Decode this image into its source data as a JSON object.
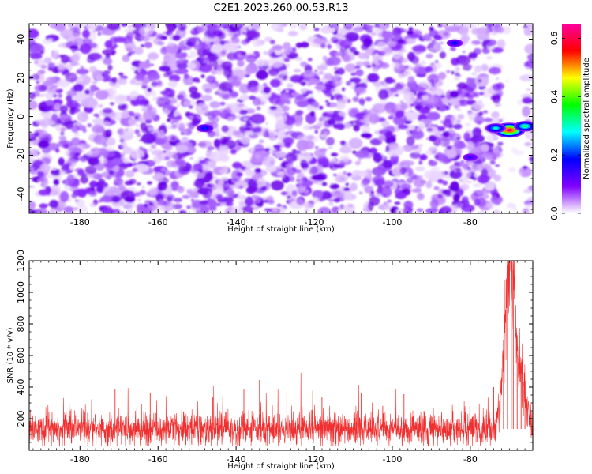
{
  "figure": {
    "title": "C2E1.2023.260.00.53.R13"
  },
  "chart_data": [
    {
      "type": "heatmap",
      "title": "C2E1.2023.260.00.53.R13",
      "xlabel": "Height of straight line (km)",
      "ylabel": "Frequency (Hz)",
      "xlim": [
        -193,
        -64
      ],
      "ylim": [
        -50,
        48
      ],
      "x_ticks": [
        -180,
        -160,
        -140,
        -120,
        -100,
        -80
      ],
      "y_ticks": [
        -40,
        -20,
        0,
        20,
        40
      ],
      "colorbar": {
        "label": "Normalized spectral amplitude",
        "range": [
          0.0,
          0.65
        ],
        "ticks": [
          0.0,
          0.2,
          0.4,
          0.6
        ],
        "colormap": [
          "#ffffff",
          "#8000ff",
          "#0000ff",
          "#00ffff",
          "#00ff00",
          "#ffff00",
          "#ff0000",
          "#ff00a0"
        ]
      },
      "background_amplitude": 0.08,
      "gap_range_km": [
        -72,
        -66
      ],
      "features": [
        {
          "x": -70,
          "y": -7,
          "amplitude": 0.62,
          "description": "strong signal"
        },
        {
          "x": -73.5,
          "y": -6,
          "amplitude": 0.3
        },
        {
          "x": -66,
          "y": -5,
          "amplitude": 0.35
        },
        {
          "x": -148,
          "y": -6,
          "amplitude": 0.2
        },
        {
          "x": -84,
          "y": 38,
          "amplitude": 0.18
        },
        {
          "x": -80,
          "y": -21,
          "amplitude": 0.15
        }
      ]
    },
    {
      "type": "line",
      "title": "",
      "xlabel": "Height of straight line (km)",
      "ylabel": "SNR (10 * v/v)",
      "xlim": [
        -193,
        -64
      ],
      "ylim": [
        0,
        1200
      ],
      "x_ticks": [
        -180,
        -160,
        -140,
        -120,
        -100,
        -80
      ],
      "y_ticks": [
        200,
        400,
        600,
        800,
        1000,
        1200
      ],
      "series_color": "#f03030",
      "baseline_mean": 135,
      "baseline_min": 30,
      "baseline_typical_max": 300,
      "peaks": [
        {
          "x": -171,
          "y": 385
        },
        {
          "x": -162,
          "y": 360
        },
        {
          "x": -146,
          "y": 335
        },
        {
          "x": -138,
          "y": 390
        },
        {
          "x": -134,
          "y": 445
        },
        {
          "x": -127,
          "y": 365
        },
        {
          "x": -118,
          "y": 340
        },
        {
          "x": -108,
          "y": 360
        },
        {
          "x": -97,
          "y": 355
        },
        {
          "x": -74,
          "y": 400
        },
        {
          "x": -71.5,
          "y": 700
        },
        {
          "x": -70.5,
          "y": 1200
        },
        {
          "x": -69.5,
          "y": 1150
        },
        {
          "x": -69,
          "y": 1140
        },
        {
          "x": -68,
          "y": 600
        },
        {
          "x": -67,
          "y": 560
        },
        {
          "x": -66,
          "y": 420
        }
      ]
    }
  ]
}
